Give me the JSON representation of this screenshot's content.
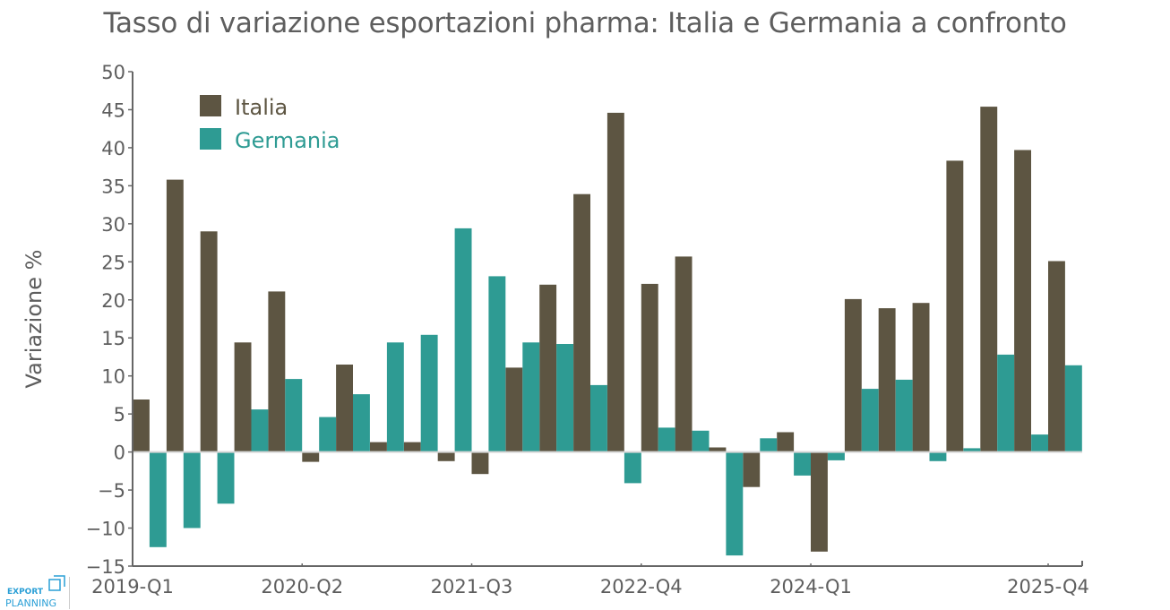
{
  "chart_data": {
    "type": "bar",
    "title": "Tasso di variazione esportazioni pharma: Italia e Germania a confronto",
    "xlabel": "",
    "ylabel": "Variazione %",
    "ylim": [
      -15,
      50
    ],
    "yticks": [
      -15,
      -10,
      -5,
      0,
      5,
      10,
      15,
      20,
      25,
      30,
      35,
      40,
      45,
      50
    ],
    "ytick_labels": [
      "−15",
      "−10",
      "−5",
      "0",
      "5",
      "10",
      "15",
      "20",
      "25",
      "30",
      "35",
      "40",
      "45",
      "50"
    ],
    "xtick_labels": [
      "2019-Q1",
      "2020-Q2",
      "2021-Q3",
      "2022-Q4",
      "2024-Q1",
      "2025-Q4"
    ],
    "legend_position": "top-left",
    "grid": false,
    "categories": [
      "2019-Q1",
      "2019-Q2",
      "2019-Q3",
      "2019-Q4",
      "2020-Q1",
      "2020-Q2",
      "2020-Q3",
      "2020-Q4",
      "2021-Q1",
      "2021-Q2",
      "2021-Q3",
      "2021-Q4",
      "2022-Q1",
      "2022-Q2",
      "2022-Q3",
      "2022-Q4",
      "2023-Q1",
      "2023-Q2",
      "2023-Q3",
      "2023-Q4",
      "2024-Q1",
      "2024-Q2",
      "2024-Q3",
      "2024-Q4",
      "2025-Q1",
      "2025-Q2",
      "2025-Q3",
      "2025-Q4"
    ],
    "series": [
      {
        "name": "Italia",
        "color": "#5d5542",
        "values": [
          6.9,
          35.8,
          29.0,
          14.4,
          21.1,
          -1.3,
          11.5,
          1.3,
          1.3,
          -1.2,
          -2.9,
          11.1,
          22.0,
          33.9,
          44.6,
          22.1,
          25.7,
          0.6,
          -4.6,
          2.6,
          -13.1,
          20.1,
          18.9,
          19.6,
          38.3,
          45.4,
          39.7,
          25.1
        ]
      },
      {
        "name": "Germania",
        "color": "#2e9b93",
        "values": [
          -12.5,
          -10.0,
          -6.8,
          5.6,
          9.6,
          4.6,
          7.6,
          14.4,
          15.4,
          29.4,
          23.1,
          14.4,
          14.2,
          8.8,
          -4.1,
          3.2,
          2.8,
          -13.6,
          1.8,
          -3.1,
          -1.1,
          8.3,
          9.5,
          -1.2,
          0.5,
          12.8,
          2.3,
          11.4
        ]
      }
    ]
  },
  "logo": {
    "line1": "EXPORT",
    "line2": "PLANNING"
  }
}
